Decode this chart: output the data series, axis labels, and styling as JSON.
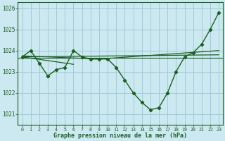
{
  "xlabel": "Graphe pression niveau de la mer (hPa)",
  "bg_color": "#cce8f0",
  "grid_color": "#a0ccd8",
  "line_color": "#1a6020",
  "xlim": [
    -0.5,
    23.5
  ],
  "ylim": [
    1020.5,
    1026.3
  ],
  "yticks": [
    1021,
    1022,
    1023,
    1024,
    1025,
    1026
  ],
  "xticks": [
    0,
    1,
    2,
    3,
    4,
    5,
    6,
    7,
    8,
    9,
    10,
    11,
    12,
    13,
    14,
    15,
    16,
    17,
    18,
    19,
    20,
    21,
    22,
    23
  ],
  "main_series": [
    1023.7,
    1024.0,
    1023.4,
    1022.8,
    1023.1,
    1023.2,
    1024.0,
    1023.7,
    1023.6,
    1023.6,
    1023.6,
    1023.2,
    1022.6,
    1022.0,
    1021.55,
    1021.2,
    1021.3,
    1022.0,
    1023.0,
    1023.7,
    1023.9,
    1024.3,
    1025.0,
    1025.8
  ],
  "trend_line1_x": [
    0,
    23
  ],
  "trend_line1_y": [
    1023.7,
    1023.8
  ],
  "trend_line2_x": [
    0,
    9,
    23
  ],
  "trend_line2_y": [
    1023.75,
    1023.6,
    1024.0
  ],
  "flat_line_y": 1023.65,
  "short_line_x": [
    0,
    6
  ],
  "short_line_y": [
    1023.7,
    1023.35
  ]
}
